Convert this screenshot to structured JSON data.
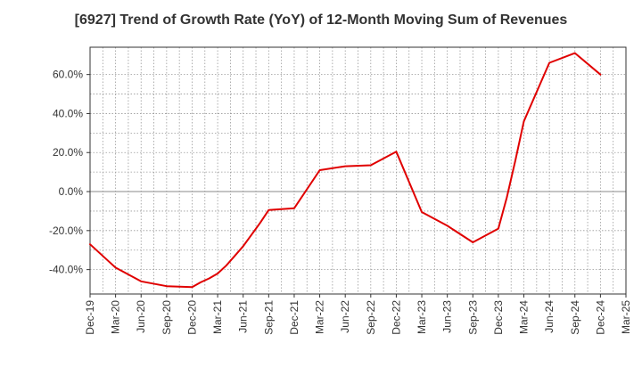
{
  "chart_data": {
    "type": "line",
    "title": "[6927]  Trend of Growth Rate (YoY) of 12-Month Moving Sum of Revenues",
    "xlabel": "",
    "ylabel": "",
    "x_tick_labels": [
      "Dec-19",
      "Mar-20",
      "Jun-20",
      "Sep-20",
      "Dec-20",
      "Mar-21",
      "Jun-21",
      "Sep-21",
      "Dec-21",
      "Mar-22",
      "Jun-22",
      "Sep-22",
      "Dec-22",
      "Mar-23",
      "Jun-23",
      "Sep-23",
      "Dec-23",
      "Mar-24",
      "Jun-24",
      "Sep-24",
      "Dec-24",
      "Mar-25"
    ],
    "y_tick_labels": [
      "-40.0%",
      "-20.0%",
      "0.0%",
      "20.0%",
      "40.0%",
      "60.0%"
    ],
    "y_ticks": [
      -40,
      -20,
      0,
      20,
      40,
      60
    ],
    "ylim": [
      -52.5,
      74
    ],
    "grid": true,
    "series": [
      {
        "color": "#e00000",
        "x": [
          "Dec-19",
          "Mar-20",
          "Jun-20",
          "Sep-20",
          "Dec-20",
          "Jan-21",
          "Feb-21",
          "Mar-21",
          "Apr-21",
          "May-21",
          "Jun-21",
          "Jul-21",
          "Aug-21",
          "Sep-21",
          "Dec-21",
          "Mar-22",
          "Jun-22",
          "Sep-22",
          "Dec-22",
          "Mar-23",
          "Jun-23",
          "Sep-23",
          "Dec-23",
          "Jan-24",
          "Feb-24",
          "Mar-24",
          "Jun-24",
          "Sep-24",
          "Dec-24"
        ],
        "values": [
          -27,
          -39,
          -46,
          -48.5,
          -49,
          -46.5,
          -44.5,
          -42,
          -38,
          -33,
          -28,
          -22,
          -16,
          -9.5,
          -8.5,
          11,
          13,
          13.5,
          20.5,
          -10.5,
          -17.5,
          -26,
          -19,
          -3,
          16,
          36,
          66,
          71,
          60
        ]
      }
    ]
  }
}
